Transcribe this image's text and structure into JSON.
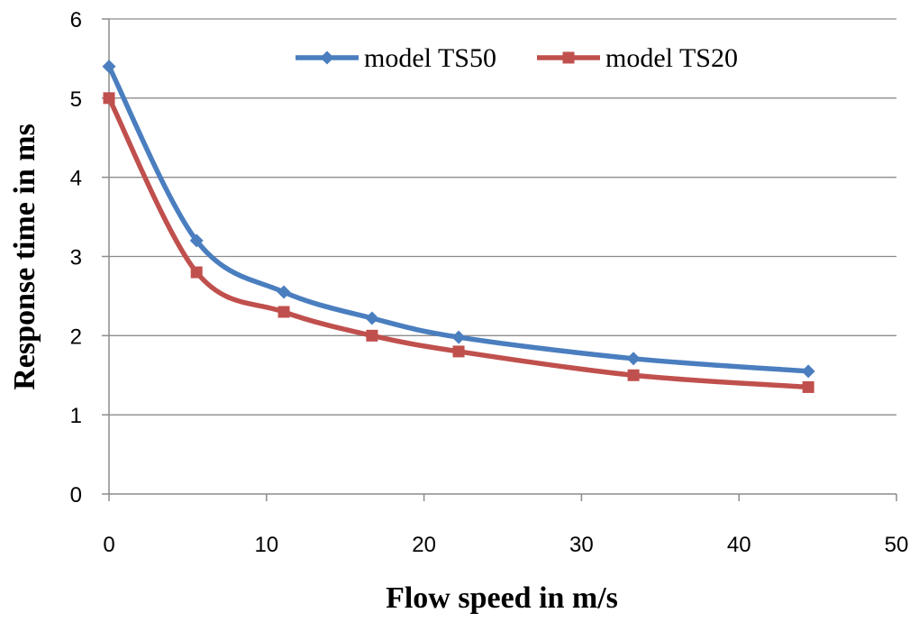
{
  "chart_data": {
    "type": "line",
    "title": "",
    "xlabel": "Flow speed in m/s",
    "ylabel": "Response time in ms",
    "xlim": [
      0,
      50
    ],
    "ylim": [
      0,
      6
    ],
    "xticks": [
      0,
      10,
      20,
      30,
      40,
      50
    ],
    "yticks": [
      0,
      1,
      2,
      3,
      4,
      5,
      6
    ],
    "grid": "horizontal",
    "legend_position": "top-right",
    "series": [
      {
        "name": "model TS50",
        "color": "#4a7ebf",
        "marker": "diamond",
        "x": [
          0,
          5.56,
          11.1,
          16.7,
          22.2,
          33.3,
          44.4
        ],
        "y": [
          5.4,
          3.2,
          2.55,
          2.22,
          1.98,
          1.71,
          1.55
        ]
      },
      {
        "name": "model TS20",
        "color": "#c0504d",
        "marker": "square",
        "x": [
          0,
          5.56,
          11.1,
          16.7,
          22.2,
          33.3,
          44.4
        ],
        "y": [
          5.0,
          2.8,
          2.3,
          2.0,
          1.8,
          1.5,
          1.35
        ]
      }
    ]
  }
}
